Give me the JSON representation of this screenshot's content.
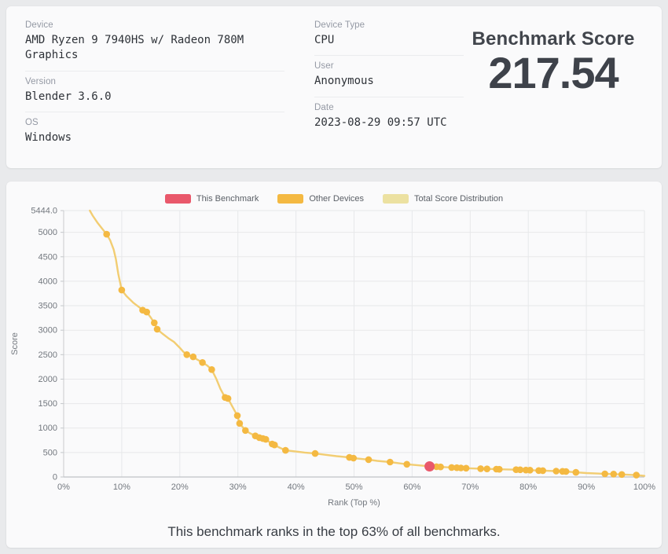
{
  "header": {
    "left_fields": [
      {
        "label": "Device",
        "value": "AMD Ryzen 9 7940HS w/ Radeon 780M Graphics"
      },
      {
        "label": "Version",
        "value": "Blender 3.6.0"
      },
      {
        "label": "OS",
        "value": "Windows"
      }
    ],
    "mid_fields": [
      {
        "label": "Device Type",
        "value": "CPU"
      },
      {
        "label": "User",
        "value": "Anonymous"
      },
      {
        "label": "Date",
        "value": "2023-08-29 09:57 UTC"
      }
    ],
    "score_title": "Benchmark Score",
    "score_value": "217.54"
  },
  "legend": [
    {
      "label": "This Benchmark",
      "color": "#e9586b"
    },
    {
      "label": "Other Devices",
      "color": "#f4b942"
    },
    {
      "label": "Total Score Distribution",
      "color": "#ece1a1"
    }
  ],
  "chart_data": {
    "type": "scatter",
    "title": "",
    "xlabel": "Rank (Top %)",
    "ylabel": "Score",
    "xlim": [
      0,
      100
    ],
    "ylim": [
      0,
      5444
    ],
    "grid": true,
    "legend_position": "top",
    "xticks": {
      "values": [
        0,
        10,
        20,
        30,
        40,
        50,
        60,
        70,
        80,
        90,
        100
      ],
      "labels": [
        "0%",
        "10%",
        "20%",
        "30%",
        "40%",
        "50%",
        "60%",
        "70%",
        "80%",
        "90%",
        "100%"
      ]
    },
    "yticks": {
      "values": [
        0,
        500,
        1000,
        1500,
        2000,
        2500,
        3000,
        3500,
        4000,
        4500,
        5000,
        5444
      ],
      "labels": [
        "0",
        "500",
        "1000",
        "1500",
        "2000",
        "2500",
        "3000",
        "3500",
        "4000",
        "4500",
        "5000",
        "5444.0"
      ]
    },
    "series": [
      {
        "name": "Total Score Distribution",
        "type": "line",
        "color": "#f2cd72",
        "points": [
          [
            4.5,
            5444
          ],
          [
            5.0,
            5340
          ],
          [
            5.8,
            5200
          ],
          [
            6.6,
            5080
          ],
          [
            7.4,
            4960
          ],
          [
            8.0,
            4840
          ],
          [
            8.6,
            4650
          ],
          [
            9.0,
            4450
          ],
          [
            9.4,
            4150
          ],
          [
            10.0,
            3820
          ],
          [
            10.8,
            3700
          ],
          [
            12.0,
            3560
          ],
          [
            13.0,
            3470
          ],
          [
            13.6,
            3410
          ],
          [
            14.3,
            3370
          ],
          [
            15.0,
            3260
          ],
          [
            15.6,
            3150
          ],
          [
            16.1,
            3020
          ],
          [
            17.0,
            2930
          ],
          [
            18.0,
            2840
          ],
          [
            19.0,
            2760
          ],
          [
            20.0,
            2640
          ],
          [
            20.6,
            2560
          ],
          [
            21.2,
            2500
          ],
          [
            22.3,
            2455
          ],
          [
            23.0,
            2400
          ],
          [
            23.9,
            2340
          ],
          [
            24.7,
            2280
          ],
          [
            25.5,
            2195
          ],
          [
            26.3,
            2000
          ],
          [
            27.0,
            1800
          ],
          [
            27.8,
            1625
          ],
          [
            28.3,
            1605
          ],
          [
            29.0,
            1450
          ],
          [
            29.9,
            1255
          ],
          [
            30.3,
            1095
          ],
          [
            31.3,
            950
          ],
          [
            32.0,
            900
          ],
          [
            33.0,
            840
          ],
          [
            33.7,
            805
          ],
          [
            34.3,
            785
          ],
          [
            34.8,
            770
          ],
          [
            35.9,
            675
          ],
          [
            36.3,
            655
          ],
          [
            37.0,
            610
          ],
          [
            38.2,
            545
          ],
          [
            40.0,
            520
          ],
          [
            41.5,
            500
          ],
          [
            43.3,
            480
          ],
          [
            45.0,
            455
          ],
          [
            47.0,
            425
          ],
          [
            49.2,
            400
          ],
          [
            49.9,
            385
          ],
          [
            52.5,
            355
          ],
          [
            54.0,
            330
          ],
          [
            56.2,
            305
          ],
          [
            59.1,
            260
          ],
          [
            61.0,
            240
          ],
          [
            63.0,
            218
          ],
          [
            64.2,
            210
          ],
          [
            64.9,
            205
          ],
          [
            66.8,
            195
          ],
          [
            67.7,
            190
          ],
          [
            68.4,
            185
          ],
          [
            69.3,
            180
          ],
          [
            71.8,
            170
          ],
          [
            72.9,
            165
          ],
          [
            74.5,
            160
          ],
          [
            75.0,
            158
          ],
          [
            77.9,
            150
          ],
          [
            78.6,
            148
          ],
          [
            79.6,
            142
          ],
          [
            80.3,
            140
          ],
          [
            81.8,
            132
          ],
          [
            82.5,
            130
          ],
          [
            84.8,
            120
          ],
          [
            85.9,
            115
          ],
          [
            86.5,
            112
          ],
          [
            88.2,
            95
          ],
          [
            90.0,
            80
          ],
          [
            93.2,
            65
          ],
          [
            94.7,
            60
          ],
          [
            96.1,
            52
          ],
          [
            98.6,
            38
          ],
          [
            100,
            22
          ]
        ]
      },
      {
        "name": "Other Devices",
        "type": "scatter",
        "color": "#f4b942",
        "points": [
          [
            7.4,
            4960
          ],
          [
            10.0,
            3820
          ],
          [
            13.6,
            3410
          ],
          [
            14.3,
            3370
          ],
          [
            15.6,
            3150
          ],
          [
            16.1,
            3020
          ],
          [
            21.2,
            2500
          ],
          [
            22.3,
            2455
          ],
          [
            23.9,
            2340
          ],
          [
            25.5,
            2195
          ],
          [
            27.8,
            1625
          ],
          [
            28.3,
            1605
          ],
          [
            29.9,
            1255
          ],
          [
            30.3,
            1095
          ],
          [
            31.3,
            950
          ],
          [
            33.0,
            840
          ],
          [
            33.7,
            805
          ],
          [
            34.3,
            785
          ],
          [
            34.8,
            770
          ],
          [
            35.9,
            675
          ],
          [
            36.3,
            655
          ],
          [
            38.2,
            545
          ],
          [
            43.3,
            480
          ],
          [
            49.2,
            400
          ],
          [
            49.9,
            385
          ],
          [
            52.5,
            355
          ],
          [
            56.2,
            305
          ],
          [
            59.1,
            260
          ],
          [
            64.2,
            210
          ],
          [
            64.9,
            205
          ],
          [
            66.8,
            195
          ],
          [
            67.7,
            190
          ],
          [
            68.4,
            185
          ],
          [
            69.3,
            180
          ],
          [
            71.8,
            170
          ],
          [
            72.9,
            165
          ],
          [
            74.5,
            160
          ],
          [
            75.0,
            158
          ],
          [
            77.9,
            150
          ],
          [
            78.6,
            148
          ],
          [
            79.6,
            142
          ],
          [
            80.3,
            140
          ],
          [
            81.8,
            132
          ],
          [
            82.5,
            130
          ],
          [
            84.8,
            120
          ],
          [
            85.9,
            115
          ],
          [
            86.5,
            112
          ],
          [
            88.2,
            95
          ],
          [
            93.2,
            65
          ],
          [
            94.7,
            60
          ],
          [
            96.1,
            52
          ],
          [
            98.6,
            38
          ]
        ]
      },
      {
        "name": "This Benchmark",
        "type": "scatter",
        "color": "#e9586b",
        "points": [
          [
            63.0,
            217.54
          ]
        ]
      }
    ]
  },
  "caption": "This benchmark ranks in the top 63% of all benchmarks."
}
